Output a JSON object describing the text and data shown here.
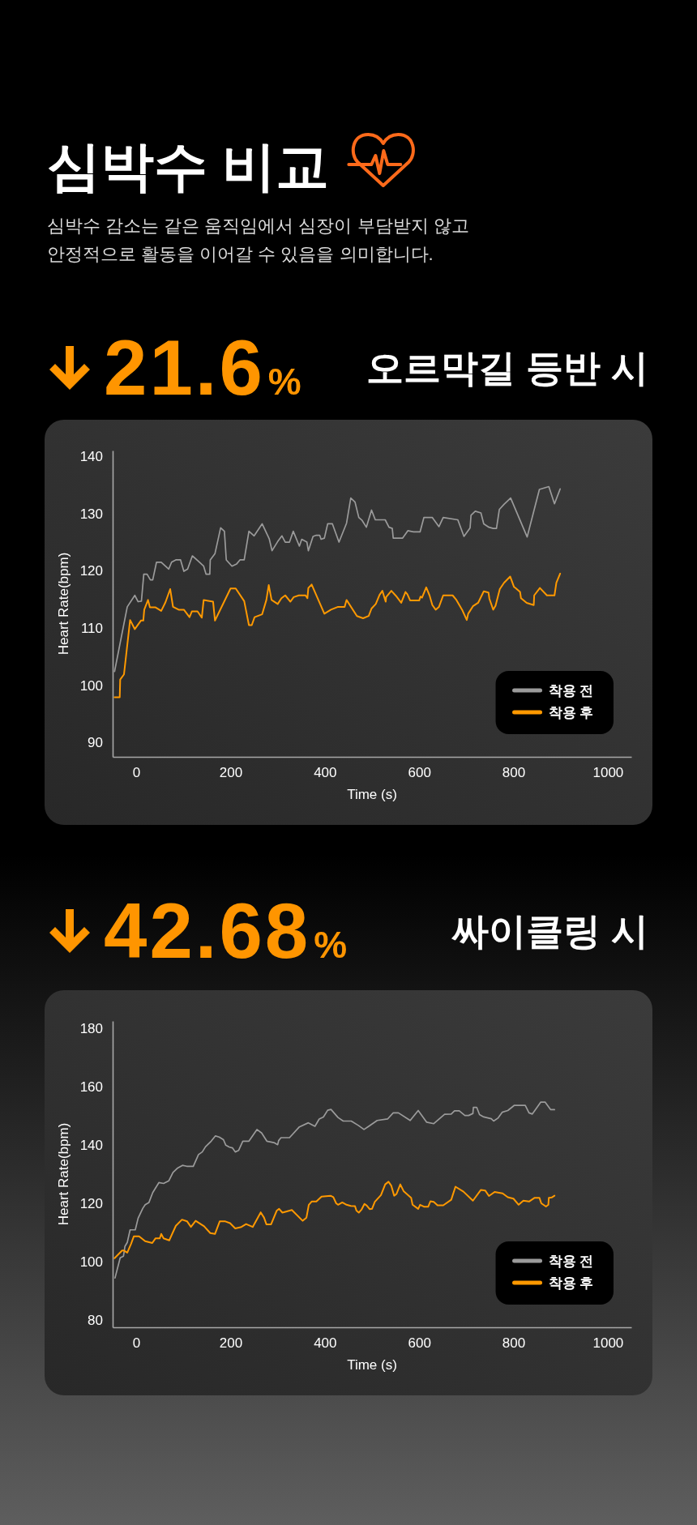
{
  "chart_data": [
    {
      "type": "other",
      "title": "심박수 비교",
      "subtitle": "심박수 감소는 같은 움직임에서 심장이 부담받지 않고 안정적으로 활동을 이어갈 수 있음을 의미합니다."
    },
    {
      "type": "line",
      "title": "오르막길 등반 시",
      "annotations": [
        "21.6%"
      ],
      "xlabel": "Time (s)",
      "ylabel": "Heart Rate(bpm)",
      "xlim": [
        -50,
        1050
      ],
      "ylim": [
        87.5,
        141
      ],
      "xticks": [
        0,
        200,
        400,
        600,
        800,
        1000
      ],
      "yticks": [
        90,
        100,
        110,
        120,
        130,
        140
      ],
      "legend": "bottom right",
      "series": [
        {
          "name": "착용 전",
          "color": "#9b9b9b",
          "x": [
            -46,
            -19,
            -3,
            4,
            11,
            16,
            23,
            30,
            35,
            43,
            53,
            69,
            75,
            84,
            94,
            101,
            109,
            119,
            130,
            143,
            148,
            156,
            157,
            167,
            179,
            187,
            191,
            203,
            213,
            220,
            229,
            239,
            250,
            267,
            282,
            288,
            300,
            309,
            316,
            325,
            333,
            346,
            351,
            362,
            365,
            375,
            382,
            389,
            392,
            399,
            406,
            416,
            430,
            446,
            455,
            464,
            472,
            479,
            488,
            499,
            507,
            528,
            536,
            543,
            545,
            565,
            576,
            588,
            602,
            610,
            628,
            642,
            651,
            682,
            695,
            708,
            710,
            719,
            731,
            737,
            748,
            757,
            764,
            770,
            780,
            794,
            829,
            855,
            875,
            887,
            899
          ],
          "values": [
            102.4,
            113.7,
            115.7,
            114.6,
            114.7,
            119.4,
            119.4,
            118.4,
            118.4,
            121.5,
            121.5,
            120.3,
            121.5,
            121.9,
            121.9,
            119.9,
            120.3,
            122.6,
            121.8,
            120.8,
            119.4,
            119.4,
            121.9,
            123.0,
            127.5,
            126.9,
            121.9,
            120.8,
            121.2,
            121.9,
            121.9,
            126.9,
            126.1,
            128.2,
            125.6,
            123.5,
            125.1,
            126.1,
            125.0,
            125.0,
            126.9,
            124.3,
            125.5,
            125.0,
            123.5,
            126.0,
            126.2,
            126.2,
            125.5,
            125.7,
            128.2,
            128.2,
            125.0,
            128.3,
            132.7,
            132.0,
            129.3,
            128.8,
            127.6,
            130.6,
            128.9,
            128.9,
            127.6,
            127.4,
            125.7,
            125.7,
            127.0,
            126.8,
            126.8,
            129.3,
            129.3,
            127.7,
            129.3,
            128.9,
            126.0,
            127.5,
            129.7,
            130.4,
            130.1,
            128.2,
            127.6,
            127.4,
            127.4,
            130.7,
            131.6,
            132.7,
            125.9,
            134.2,
            134.7,
            131.7,
            134.3
          ]
        },
        {
          "name": "착용 후",
          "color": "#ff9900",
          "x": [
            -46,
            -35,
            -34,
            -26,
            -13,
            -3,
            10,
            15,
            17,
            25,
            29,
            41,
            53,
            62,
            72,
            78,
            90,
            101,
            113,
            118,
            130,
            139,
            143,
            163,
            167,
            200,
            211,
            229,
            239,
            245,
            251,
            267,
            276,
            281,
            287,
            300,
            308,
            316,
            327,
            334,
            345,
            359,
            363,
            365,
            372,
            399,
            413,
            428,
            442,
            446,
            468,
            481,
            493,
            499,
            508,
            516,
            522,
            529,
            530,
            541,
            551,
            562,
            571,
            575,
            581,
            600,
            603,
            606,
            615,
            622,
            628,
            635,
            642,
            651,
            671,
            679,
            691,
            701,
            704,
            714,
            725,
            737,
            747,
            749,
            757,
            762,
            771,
            780,
            793,
            801,
            804,
            814,
            816,
            828,
            843,
            844,
            856,
            871,
            887,
            891,
            899
          ],
          "values": [
            97.9,
            97.9,
            101.0,
            101.9,
            111.4,
            109.8,
            111.3,
            111.3,
            113.2,
            114.9,
            113.6,
            113.6,
            113.0,
            114.5,
            116.8,
            113.7,
            113.2,
            113.2,
            111.9,
            112.9,
            112.9,
            111.8,
            114.9,
            114.6,
            111.3,
            116.9,
            116.9,
            114.7,
            110.5,
            110.5,
            111.9,
            112.4,
            114.9,
            117.5,
            114.9,
            114.2,
            115.2,
            115.7,
            114.6,
            115.4,
            115.7,
            115.7,
            115.2,
            117.0,
            117.6,
            112.5,
            113.2,
            113.7,
            113.7,
            114.9,
            112.1,
            111.7,
            112.1,
            113.4,
            114.2,
            115.8,
            116.5,
            114.6,
            115.4,
            116.5,
            115.6,
            114.4,
            116.3,
            115.9,
            114.8,
            114.8,
            115.5,
            115.3,
            117.1,
            115.7,
            114.0,
            113.2,
            113.7,
            115.7,
            115.7,
            114.9,
            113.2,
            111.4,
            112.5,
            113.8,
            114.4,
            116.4,
            116.2,
            115.1,
            113.2,
            113.9,
            116.8,
            117.9,
            119.0,
            117.2,
            117.0,
            116.3,
            115.2,
            114.4,
            114.0,
            115.7,
            117.0,
            115.7,
            115.7,
            117.9,
            119.5
          ]
        }
      ]
    },
    {
      "type": "line",
      "title": "싸이클링 시",
      "annotations": [
        "42.68%"
      ],
      "xlabel": "Time (s)",
      "ylabel": "Heart Rate(bpm)",
      "xlim": [
        -50,
        1050
      ],
      "ylim": [
        77.5,
        182.5
      ],
      "xticks": [
        0,
        200,
        400,
        600,
        800,
        1000
      ],
      "yticks": [
        80,
        100,
        120,
        140,
        160,
        180
      ],
      "legend": "bottom right",
      "series": [
        {
          "name": "착용 전",
          "color": "#9b9b9b",
          "x": [
            -45,
            -34,
            -27,
            -24,
            -19,
            -13,
            -2,
            4,
            14,
            19,
            27,
            35,
            48,
            58,
            69,
            78,
            87,
            98,
            107,
            121,
            132,
            140,
            147,
            159,
            168,
            176,
            185,
            190,
            197,
            204,
            210,
            217,
            226,
            239,
            256,
            266,
            277,
            292,
            300,
            302,
            307,
            325,
            346,
            365,
            379,
            388,
            397,
            406,
            413,
            428,
            439,
            456,
            471,
            483,
            493,
            511,
            533,
            545,
            556,
            581,
            598,
            616,
            631,
            654,
            668,
            675,
            685,
            697,
            705,
            714,
            715,
            722,
            728,
            737,
            753,
            758,
            767,
            776,
            788,
            802,
            825,
            833,
            840,
            848,
            858,
            867,
            879,
            887
          ],
          "values": [
            94.4,
            101.3,
            101.9,
            105.2,
            106.6,
            110.9,
            110.9,
            114.9,
            118.3,
            119.5,
            120.3,
            123.7,
            127.1,
            126.8,
            127.7,
            130.6,
            132.0,
            133.0,
            132.7,
            132.7,
            136.7,
            137.6,
            139.4,
            141.3,
            143.1,
            142.7,
            141.8,
            139.9,
            139.3,
            139.0,
            137.6,
            138.1,
            141.3,
            141.3,
            145.3,
            144.1,
            141.3,
            140.8,
            140.1,
            141.5,
            142.5,
            142.5,
            146.2,
            147.6,
            146.4,
            148.9,
            149.6,
            151.9,
            152.2,
            149.4,
            148.2,
            148.2,
            146.7,
            145.3,
            146.4,
            148.4,
            148.9,
            151.0,
            151.0,
            148.4,
            151.8,
            147.8,
            147.3,
            150.5,
            150.6,
            151.7,
            151.7,
            150.1,
            150.1,
            150.8,
            152.9,
            152.9,
            150.4,
            149.6,
            149.0,
            148.2,
            149.2,
            151.2,
            151.8,
            153.6,
            153.6,
            151.0,
            150.6,
            152.4,
            154.7,
            154.7,
            152.1,
            152.1
          ]
        },
        {
          "name": "착용 후",
          "color": "#ff9900",
          "x": [
            -46,
            -30,
            -26,
            -19,
            -11,
            -5,
            6,
            19,
            34,
            41,
            50,
            53,
            58,
            70,
            84,
            97,
            108,
            116,
            126,
            144,
            157,
            167,
            177,
            189,
            199,
            210,
            223,
            233,
            240,
            247,
            264,
            271,
            276,
            286,
            298,
            303,
            310,
            330,
            353,
            361,
            366,
            372,
            382,
            393,
            412,
            418,
            424,
            428,
            437,
            446,
            455,
            464,
            467,
            472,
            478,
            484,
            489,
            495,
            500,
            506,
            519,
            528,
            535,
            541,
            547,
            552,
            560,
            567,
            583,
            586,
            598,
            602,
            611,
            619,
            624,
            631,
            639,
            651,
            668,
            677,
            694,
            714,
            731,
            740,
            748,
            760,
            777,
            788,
            800,
            811,
            821,
            833,
            845,
            855,
            859,
            869,
            874,
            875,
            881,
            887
          ],
          "values": [
            101.2,
            103.8,
            103.8,
            103.1,
            106.1,
            108.7,
            108.7,
            107.0,
            106.4,
            108.0,
            108.0,
            109.5,
            108.0,
            107.3,
            112.3,
            114.4,
            113.8,
            111.9,
            114.0,
            112.1,
            109.8,
            109.5,
            113.8,
            113.8,
            113.2,
            111.4,
            111.9,
            112.9,
            112.4,
            111.9,
            116.9,
            115.1,
            112.8,
            112.8,
            117.5,
            118.1,
            116.8,
            117.7,
            114.0,
            115.1,
            119.5,
            120.6,
            120.6,
            122.3,
            122.6,
            122.1,
            120.0,
            119.5,
            120.3,
            119.5,
            119.1,
            119.0,
            117.5,
            116.8,
            117.9,
            119.8,
            119.2,
            118.0,
            118.1,
            120.5,
            122.8,
            126.5,
            127.4,
            126.0,
            122.6,
            123.2,
            126.5,
            124.2,
            121.9,
            119.5,
            118.1,
            119.5,
            118.8,
            118.8,
            120.7,
            120.5,
            119.3,
            119.3,
            121.2,
            125.7,
            124.0,
            120.9,
            124.6,
            124.4,
            122.5,
            123.9,
            123.4,
            122.1,
            121.6,
            119.5,
            120.9,
            120.6,
            121.9,
            121.9,
            120.0,
            118.9,
            119.5,
            121.9,
            122.0,
            122.6
          ]
        }
      ]
    }
  ]
}
